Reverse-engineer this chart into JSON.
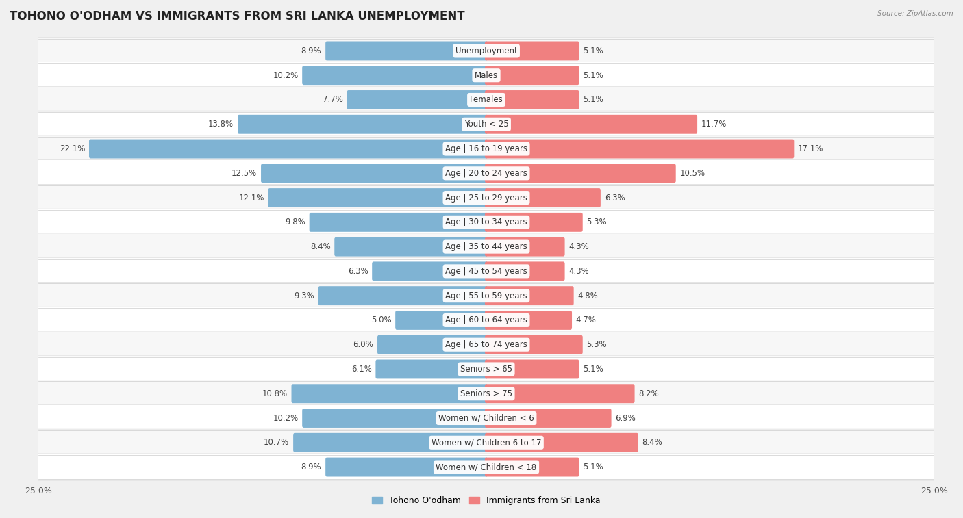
{
  "title": "TOHONO O'ODHAM VS IMMIGRANTS FROM SRI LANKA UNEMPLOYMENT",
  "source": "Source: ZipAtlas.com",
  "categories": [
    "Unemployment",
    "Males",
    "Females",
    "Youth < 25",
    "Age | 16 to 19 years",
    "Age | 20 to 24 years",
    "Age | 25 to 29 years",
    "Age | 30 to 34 years",
    "Age | 35 to 44 years",
    "Age | 45 to 54 years",
    "Age | 55 to 59 years",
    "Age | 60 to 64 years",
    "Age | 65 to 74 years",
    "Seniors > 65",
    "Seniors > 75",
    "Women w/ Children < 6",
    "Women w/ Children 6 to 17",
    "Women w/ Children < 18"
  ],
  "left_values": [
    8.9,
    10.2,
    7.7,
    13.8,
    22.1,
    12.5,
    12.1,
    9.8,
    8.4,
    6.3,
    9.3,
    5.0,
    6.0,
    6.1,
    10.8,
    10.2,
    10.7,
    8.9
  ],
  "right_values": [
    5.1,
    5.1,
    5.1,
    11.7,
    17.1,
    10.5,
    6.3,
    5.3,
    4.3,
    4.3,
    4.8,
    4.7,
    5.3,
    5.1,
    8.2,
    6.9,
    8.4,
    5.1
  ],
  "left_color": "#7fb3d3",
  "right_color": "#f08080",
  "left_label": "Tohono O'odham",
  "right_label": "Immigrants from Sri Lanka",
  "xlim": 25.0,
  "bar_height": 0.62,
  "row_color_even": "#f7f7f7",
  "row_color_odd": "#ffffff",
  "bg_color": "#f0f0f0",
  "title_fontsize": 12,
  "label_fontsize": 8.5,
  "value_fontsize": 8.5
}
